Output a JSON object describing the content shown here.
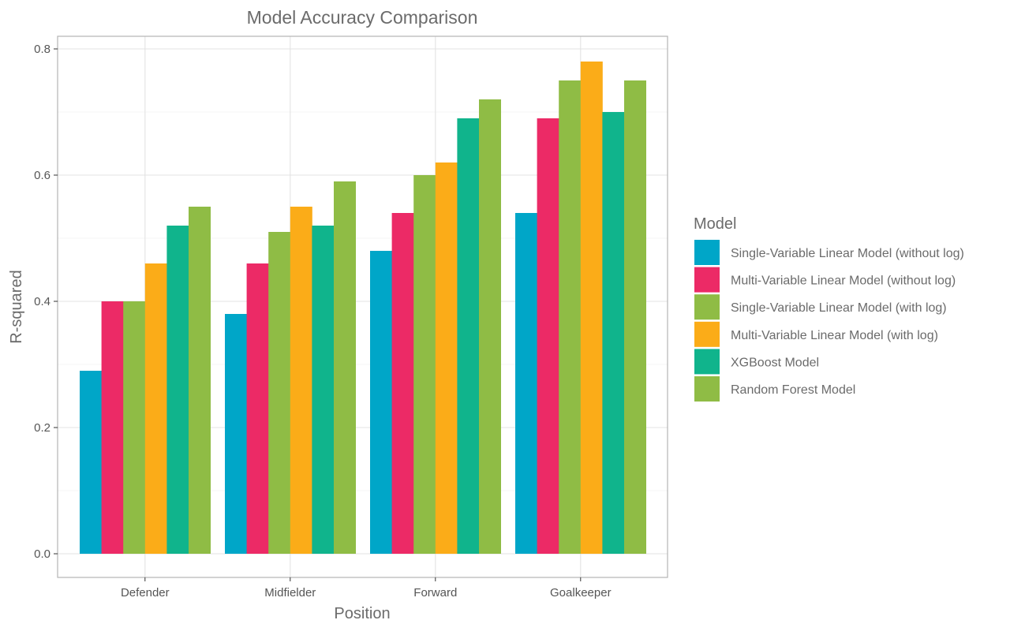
{
  "chart_data": {
    "type": "bar",
    "title": "Model Accuracy Comparison",
    "xlabel": "Position",
    "ylabel": "R-squared",
    "categories": [
      "Defender",
      "Midfielder",
      "Forward",
      "Goalkeeper"
    ],
    "ylim": [
      0,
      0.8
    ],
    "yticks": [
      "0.0",
      "0.2",
      "0.4",
      "0.6",
      "0.8"
    ],
    "grid": true,
    "legend": {
      "title": "Model",
      "position": "right"
    },
    "series": [
      {
        "name": "Single-Variable Linear Model (without log)",
        "color": "#00A6C8",
        "values": [
          0.29,
          0.38,
          0.48,
          0.54
        ]
      },
      {
        "name": "Multi-Variable Linear Model (without log)",
        "color": "#EC2A66",
        "values": [
          0.4,
          0.46,
          0.54,
          0.69
        ]
      },
      {
        "name": "Single-Variable Linear Model (with log)",
        "color": "#8FBC45",
        "values": [
          0.4,
          0.51,
          0.6,
          0.75
        ]
      },
      {
        "name": "Multi-Variable Linear Model (with log)",
        "color": "#FBAC18",
        "values": [
          0.46,
          0.55,
          0.62,
          0.78
        ]
      },
      {
        "name": "XGBoost Model",
        "color": "#10B48C",
        "values": [
          0.52,
          0.52,
          0.69,
          0.7
        ]
      },
      {
        "name": "Random Forest Model",
        "color": "#8FBC45",
        "values": [
          0.55,
          0.59,
          0.72,
          0.75
        ]
      }
    ]
  }
}
